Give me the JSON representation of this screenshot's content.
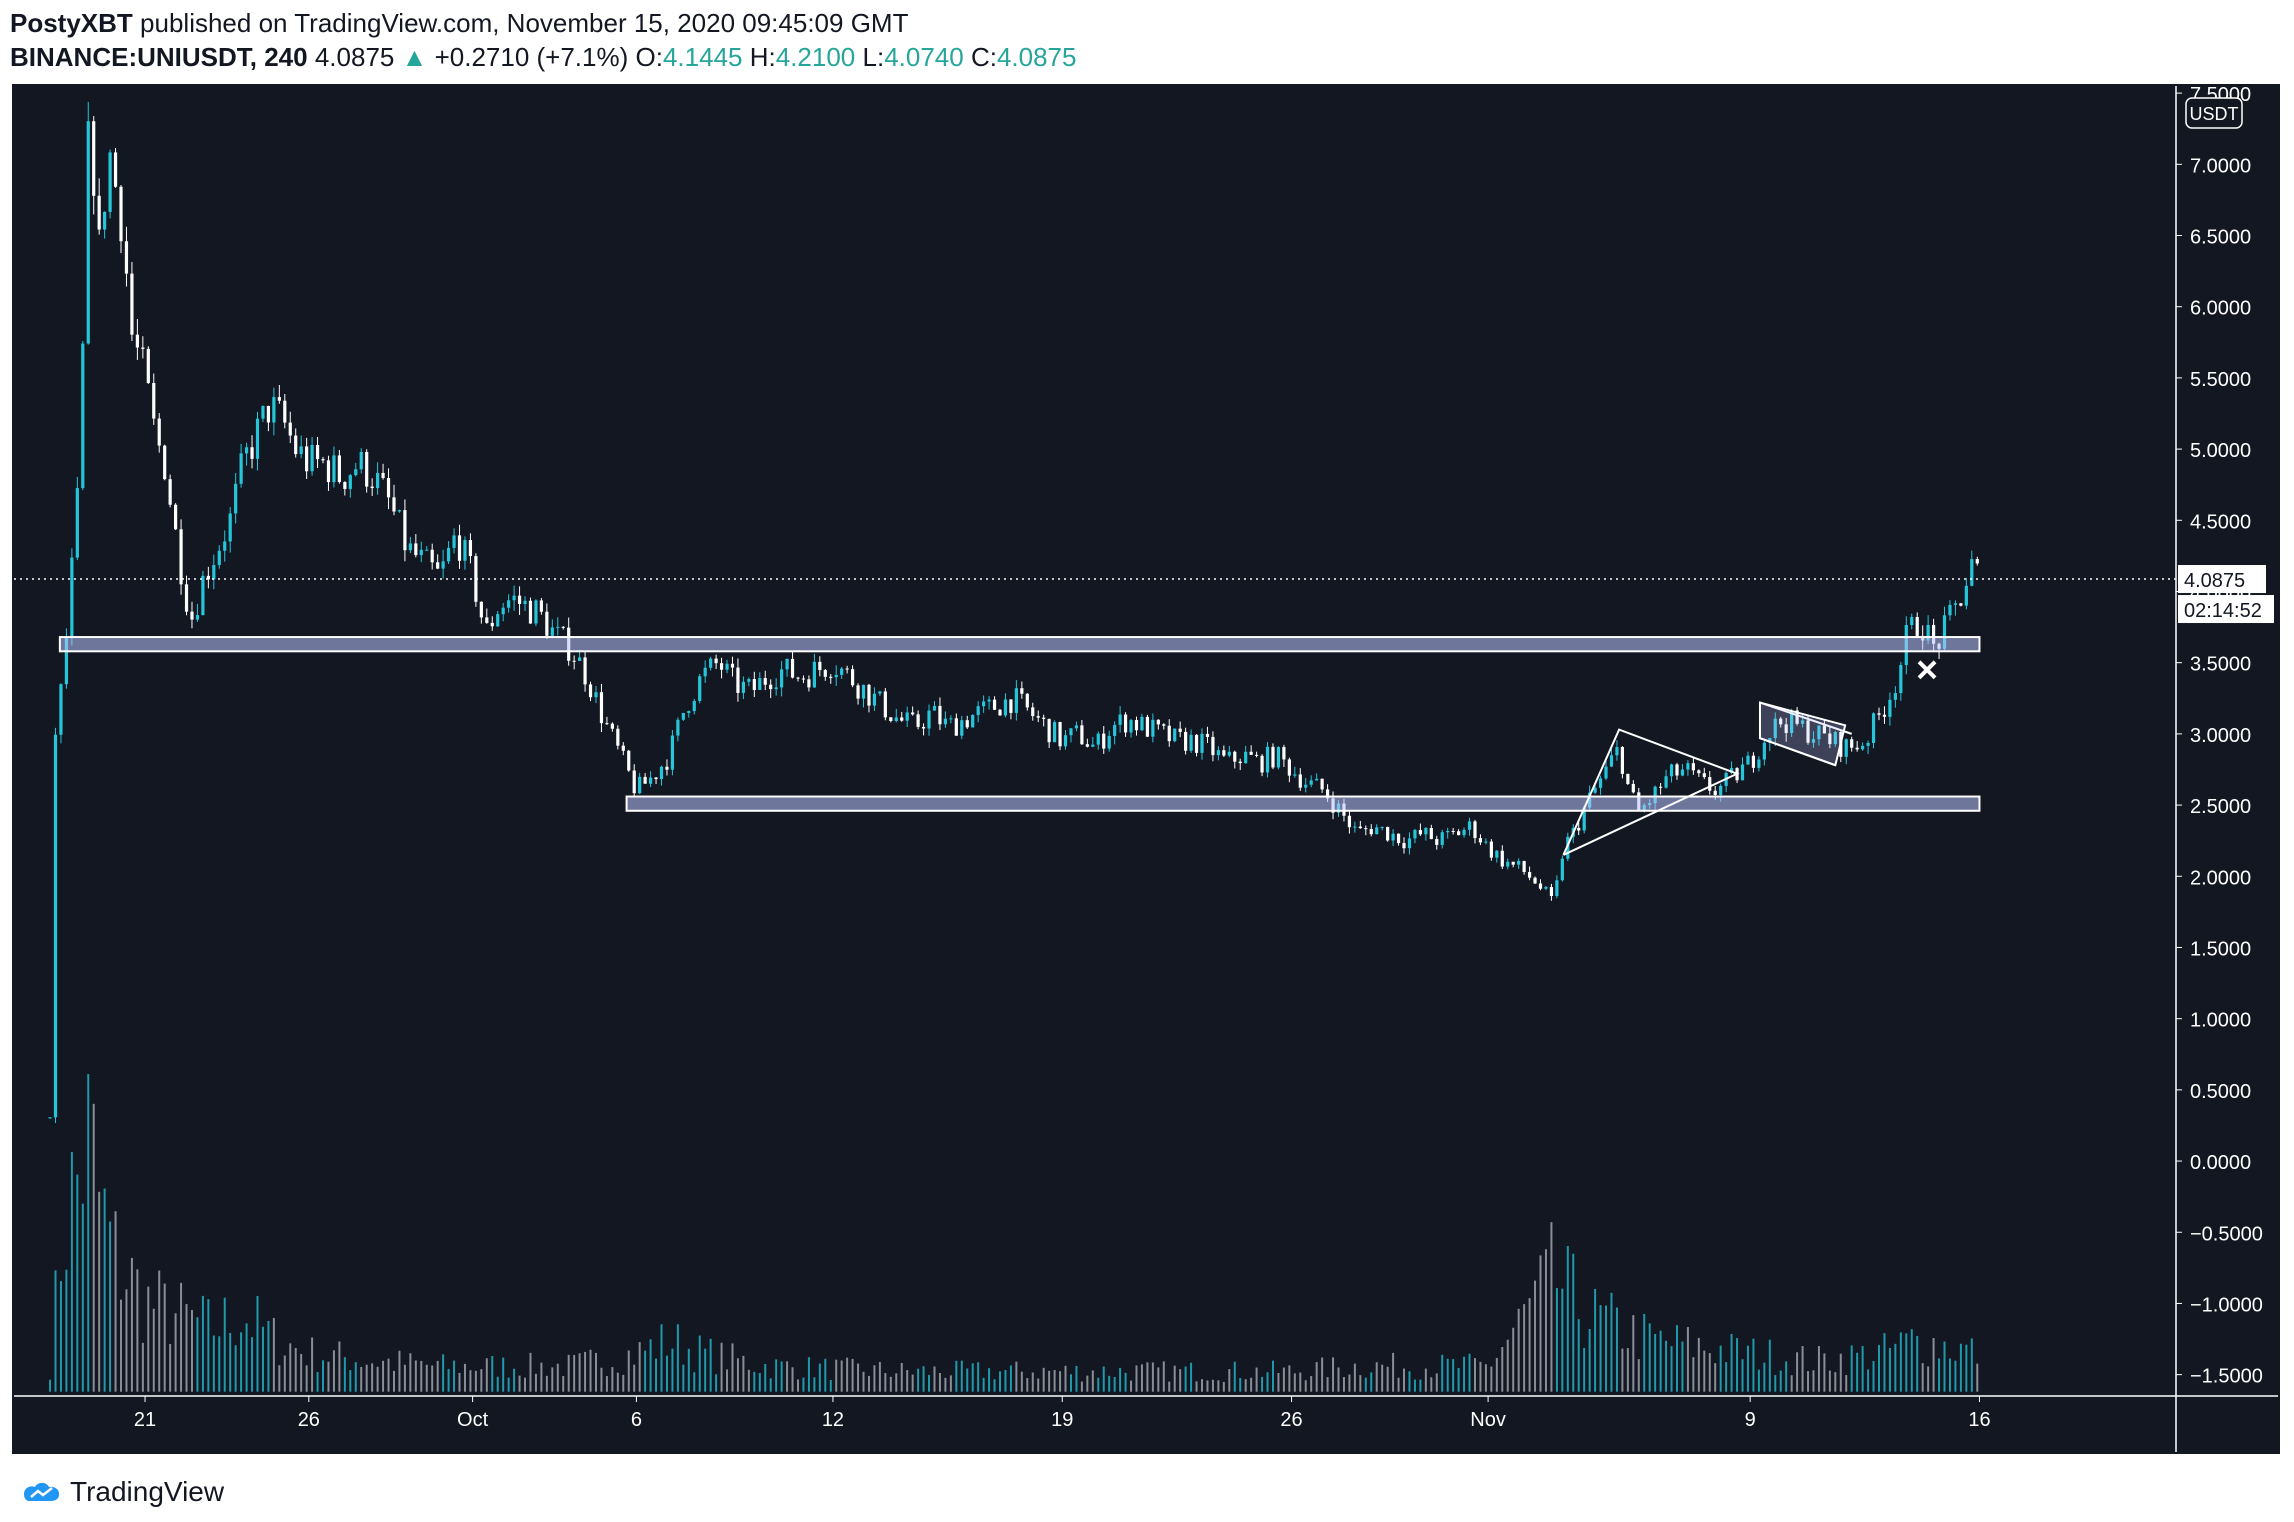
{
  "header": {
    "author": "PostyXBT",
    "published": " published on TradingView.com, November 15, 2020 09:45:09 GMT",
    "symbol": "BINANCE:UNIUSDT, 240",
    "last": "4.0875",
    "change": "+0.2710 (+7.1%)",
    "o_label": "O:",
    "o": "4.1445",
    "h_label": "H:",
    "h": "4.2100",
    "l_label": "L:",
    "l": "4.0740",
    "c_label": "C:",
    "c": "4.0875"
  },
  "brand": "TradingView",
  "colors": {
    "background": "#131722",
    "up": "#26c6da",
    "down": "#ffffff",
    "volume_up": "#26c6da",
    "volume_down": "#b2b5be"
  },
  "chart_data": {
    "type": "candlestick",
    "currency_label": "USDT",
    "price_label": "4.0875",
    "countdown_label": "02:14:52",
    "y_ticks": [
      "7.5000",
      "7.0000",
      "6.5000",
      "6.0000",
      "5.5000",
      "5.0000",
      "4.5000",
      "4.0000",
      "3.5000",
      "3.0000",
      "2.5000",
      "2.0000",
      "1.5000",
      "1.0000",
      "0.5000",
      "0.0000",
      "−0.5000",
      "−1.0000",
      "−1.5000"
    ],
    "y_values": [
      7.5,
      7.0,
      6.5,
      6.0,
      5.5,
      5.0,
      4.5,
      4.0,
      3.5,
      3.0,
      2.5,
      2.0,
      1.5,
      1.0,
      0.5,
      0.0,
      -0.5,
      -1.0,
      -1.5
    ],
    "ylim": [
      -1.65,
      7.55
    ],
    "x_ticks": [
      {
        "label": "21",
        "day": 21
      },
      {
        "label": "26",
        "day": 26
      },
      {
        "label": "Oct",
        "day": 31
      },
      {
        "label": "6",
        "day": 36
      },
      {
        "label": "12",
        "day": 42
      },
      {
        "label": "19",
        "day": 49
      },
      {
        "label": "26",
        "day": 56
      },
      {
        "label": "Nov",
        "day": 62
      },
      {
        "label": "9",
        "day": 70
      },
      {
        "label": "16",
        "day": 77
      }
    ],
    "x_unit": "days since Sep 0, 2020",
    "xlim": [
      17.0,
      83.0
    ],
    "price_path": [
      [
        18.1,
        0.3
      ],
      [
        18.2,
        2.9
      ],
      [
        18.5,
        3.4
      ],
      [
        19.0,
        4.8
      ],
      [
        19.3,
        7.4
      ],
      [
        19.6,
        6.4
      ],
      [
        19.9,
        7.1
      ],
      [
        20.3,
        6.6
      ],
      [
        20.6,
        5.8
      ],
      [
        21.0,
        5.5
      ],
      [
        21.3,
        5.1
      ],
      [
        21.6,
        4.9
      ],
      [
        22.0,
        4.3
      ],
      [
        22.4,
        3.8
      ],
      [
        22.8,
        4.1
      ],
      [
        23.2,
        4.3
      ],
      [
        23.6,
        4.5
      ],
      [
        24.0,
        4.9
      ],
      [
        24.4,
        5.1
      ],
      [
        24.8,
        5.3
      ],
      [
        25.2,
        5.2
      ],
      [
        25.6,
        5.0
      ],
      [
        26.0,
        4.9
      ],
      [
        26.5,
        4.9
      ],
      [
        27.0,
        4.8
      ],
      [
        27.5,
        4.9
      ],
      [
        28.0,
        4.8
      ],
      [
        28.5,
        4.6
      ],
      [
        29.0,
        4.3
      ],
      [
        29.5,
        4.2
      ],
      [
        30.0,
        4.1
      ],
      [
        30.5,
        4.4
      ],
      [
        31.0,
        4.1
      ],
      [
        31.4,
        3.7
      ],
      [
        31.8,
        3.9
      ],
      [
        32.2,
        3.95
      ],
      [
        32.6,
        3.9
      ],
      [
        33.0,
        3.85
      ],
      [
        33.5,
        3.7
      ],
      [
        34.0,
        3.6
      ],
      [
        34.5,
        3.4
      ],
      [
        35.0,
        3.1
      ],
      [
        35.5,
        2.85
      ],
      [
        36.0,
        2.6
      ],
      [
        36.5,
        2.7
      ],
      [
        37.0,
        2.85
      ],
      [
        37.5,
        3.2
      ],
      [
        38.0,
        3.4
      ],
      [
        38.5,
        3.5
      ],
      [
        39.0,
        3.35
      ],
      [
        39.5,
        3.3
      ],
      [
        40.0,
        3.4
      ],
      [
        40.5,
        3.45
      ],
      [
        41.0,
        3.4
      ],
      [
        41.5,
        3.45
      ],
      [
        42.0,
        3.5
      ],
      [
        42.5,
        3.4
      ],
      [
        43.0,
        3.3
      ],
      [
        43.5,
        3.2
      ],
      [
        44.0,
        3.1
      ],
      [
        44.5,
        3.05
      ],
      [
        45.0,
        3.15
      ],
      [
        45.5,
        3.05
      ],
      [
        46.0,
        3.1
      ],
      [
        46.5,
        3.15
      ],
      [
        47.0,
        3.2
      ],
      [
        47.5,
        3.25
      ],
      [
        48.0,
        3.15
      ],
      [
        48.5,
        3.05
      ],
      [
        49.0,
        2.95
      ],
      [
        49.5,
        3.0
      ],
      [
        50.0,
        2.9
      ],
      [
        50.5,
        3.05
      ],
      [
        51.0,
        3.1
      ],
      [
        51.5,
        3.05
      ],
      [
        52.0,
        3.0
      ],
      [
        52.5,
        2.95
      ],
      [
        53.0,
        2.95
      ],
      [
        53.5,
        2.9
      ],
      [
        54.0,
        2.8
      ],
      [
        54.5,
        2.85
      ],
      [
        55.0,
        2.8
      ],
      [
        55.5,
        2.85
      ],
      [
        56.0,
        2.75
      ],
      [
        56.5,
        2.65
      ],
      [
        57.0,
        2.6
      ],
      [
        57.5,
        2.45
      ],
      [
        58.0,
        2.3
      ],
      [
        58.5,
        2.35
      ],
      [
        59.0,
        2.3
      ],
      [
        59.5,
        2.25
      ],
      [
        60.0,
        2.3
      ],
      [
        60.5,
        2.25
      ],
      [
        61.0,
        2.3
      ],
      [
        61.5,
        2.35
      ],
      [
        62.0,
        2.2
      ],
      [
        62.5,
        2.1
      ],
      [
        63.0,
        2.05
      ],
      [
        63.5,
        1.95
      ],
      [
        64.0,
        1.8
      ],
      [
        64.3,
        2.2
      ],
      [
        64.6,
        2.3
      ],
      [
        65.0,
        2.5
      ],
      [
        65.5,
        2.7
      ],
      [
        66.0,
        2.9
      ],
      [
        66.3,
        2.6
      ],
      [
        66.6,
        2.45
      ],
      [
        67.0,
        2.55
      ],
      [
        67.5,
        2.7
      ],
      [
        68.0,
        2.75
      ],
      [
        68.5,
        2.65
      ],
      [
        69.0,
        2.6
      ],
      [
        69.5,
        2.7
      ],
      [
        70.0,
        2.8
      ],
      [
        70.5,
        3.0
      ],
      [
        71.0,
        3.1
      ],
      [
        71.5,
        3.05
      ],
      [
        72.0,
        3.0
      ],
      [
        72.5,
        2.95
      ],
      [
        73.0,
        2.9
      ],
      [
        73.5,
        2.95
      ],
      [
        74.0,
        3.15
      ],
      [
        74.5,
        3.4
      ],
      [
        74.8,
        3.7
      ],
      [
        75.2,
        3.8
      ],
      [
        75.6,
        3.6
      ],
      [
        76.0,
        3.75
      ],
      [
        76.5,
        4.0
      ],
      [
        76.8,
        4.2
      ],
      [
        77.0,
        4.09
      ]
    ],
    "volume_path": [
      [
        18.1,
        0.1
      ],
      [
        18.5,
        0.65
      ],
      [
        19.0,
        0.85
      ],
      [
        19.3,
        1.0
      ],
      [
        19.6,
        0.75
      ],
      [
        20.0,
        0.55
      ],
      [
        20.5,
        0.45
      ],
      [
        21.0,
        0.35
      ],
      [
        22.0,
        0.3
      ],
      [
        23.0,
        0.25
      ],
      [
        24.0,
        0.3
      ],
      [
        25.0,
        0.2
      ],
      [
        26.0,
        0.15
      ],
      [
        28.0,
        0.12
      ],
      [
        30.0,
        0.1
      ],
      [
        32.0,
        0.1
      ],
      [
        34.0,
        0.1
      ],
      [
        36.0,
        0.15
      ],
      [
        37.0,
        0.2
      ],
      [
        38.0,
        0.15
      ],
      [
        40.0,
        0.1
      ],
      [
        44.0,
        0.08
      ],
      [
        48.0,
        0.08
      ],
      [
        52.0,
        0.08
      ],
      [
        56.0,
        0.08
      ],
      [
        58.0,
        0.1
      ],
      [
        62.0,
        0.1
      ],
      [
        64.0,
        0.45
      ],
      [
        65.0,
        0.3
      ],
      [
        66.0,
        0.25
      ],
      [
        67.0,
        0.2
      ],
      [
        70.0,
        0.15
      ],
      [
        72.0,
        0.12
      ],
      [
        74.0,
        0.15
      ],
      [
        75.0,
        0.2
      ],
      [
        76.0,
        0.18
      ],
      [
        77.0,
        0.15
      ]
    ],
    "zones": [
      {
        "from": 3.58,
        "to": 3.68,
        "start_day": 18.4,
        "end_day": 77.0
      },
      {
        "from": 2.46,
        "to": 2.56,
        "start_day": 35.7,
        "end_day": 77.0
      }
    ],
    "patterns": {
      "triangle": [
        [
          64.3,
          2.15
        ],
        [
          66.0,
          3.03
        ],
        [
          69.6,
          2.72
        ],
        [
          64.3,
          2.15
        ]
      ],
      "flag_upper": [
        [
          70.3,
          3.22
        ],
        [
          73.1,
          3.0
        ]
      ],
      "flag_lower": [
        [
          70.3,
          2.97
        ],
        [
          72.6,
          2.78
        ]
      ],
      "flag_box": [
        [
          70.3,
          3.22
        ],
        [
          72.9,
          3.06
        ],
        [
          72.6,
          2.78
        ],
        [
          70.3,
          2.97
        ]
      ],
      "marker_day": 75.4,
      "marker_price": 3.45
    }
  }
}
